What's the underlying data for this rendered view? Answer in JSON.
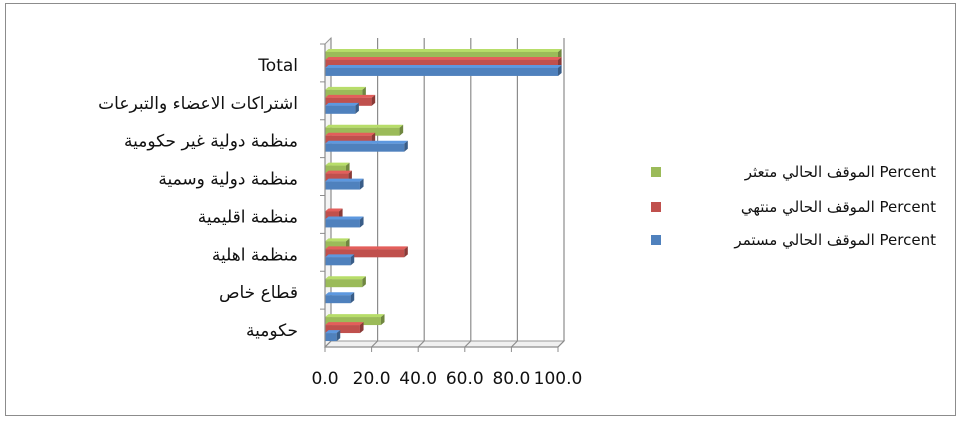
{
  "chart_data": {
    "type": "bar",
    "orientation": "horizontal",
    "categories": [
      "Total",
      "اشتراكات الاعضاء والتبرعات",
      "منظمة دولية غير حكومية",
      "منظمة دولية وسمية",
      "منظمة اقليمية",
      "منظمة اهلية",
      "قطاع خاص",
      "حكومية"
    ],
    "series": [
      {
        "name": "الموقف الحالي متعثر Percent",
        "color": "#9bbb59",
        "values": [
          100,
          16,
          32,
          9,
          0,
          9,
          16,
          24
        ]
      },
      {
        "name": "الموقف الحالي منتهي Percent",
        "color": "#c0504d",
        "values": [
          100,
          20,
          20,
          10,
          6,
          34,
          0,
          15
        ]
      },
      {
        "name": "الموقف الحالي مستمر Percent",
        "color": "#4f81bd",
        "values": [
          100,
          13,
          34,
          15,
          15,
          11,
          11,
          5
        ]
      }
    ],
    "xlim": [
      0,
      100
    ],
    "xticks": [
      "0.0",
      "20.0",
      "40.0",
      "60.0",
      "80.0",
      "100.0"
    ],
    "grid": true,
    "legend_position": "right",
    "title": "",
    "xlabel": "",
    "ylabel": ""
  }
}
